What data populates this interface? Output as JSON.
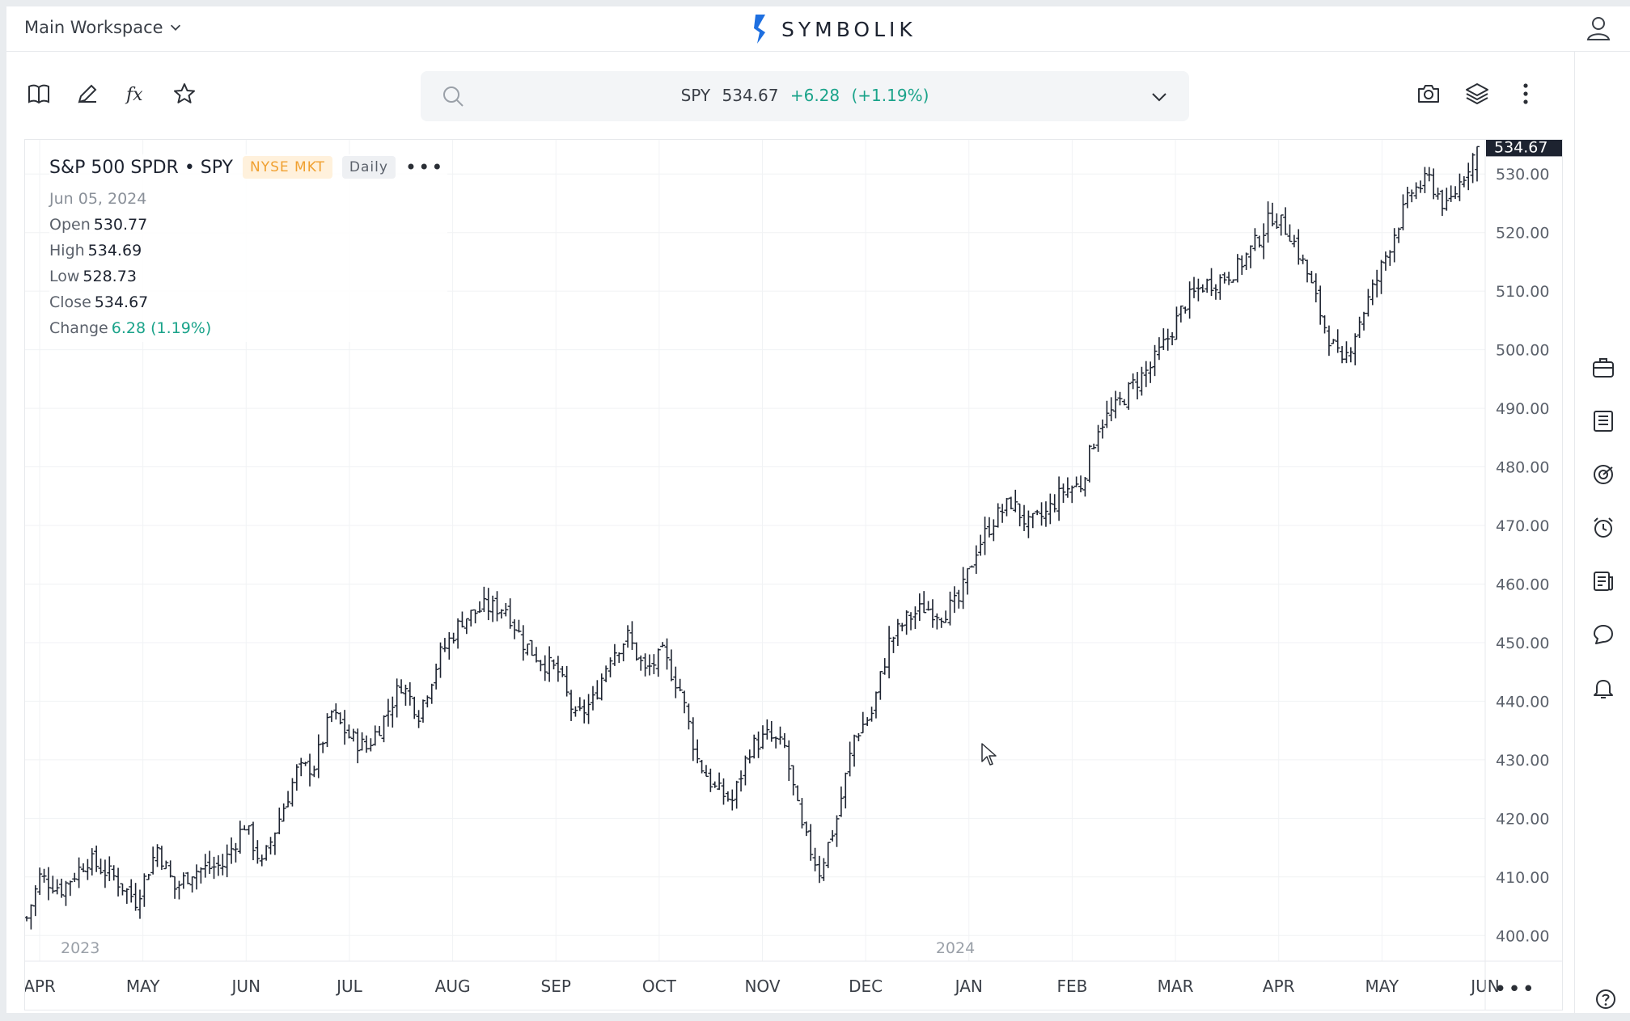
{
  "topbar": {
    "workspace_label": "Main Workspace",
    "brand_name": "SYMBOLIK",
    "brand_color": "#1e6fe0"
  },
  "toolbar": {
    "icons": [
      "book-icon",
      "pencil-icon",
      "function-icon",
      "star-icon"
    ],
    "right_icons": [
      "camera-icon",
      "layers-icon",
      "more-vertical-icon"
    ]
  },
  "quote": {
    "symbol": "SPY",
    "price": "534.67",
    "change": "+6.28",
    "change_pct": "(+1.19%)"
  },
  "legend": {
    "name": "S&P 500 SPDR • SPY",
    "exchange": "NYSE MKT",
    "interval": "Daily",
    "date": "Jun 05, 2024",
    "open_label": "Open",
    "open": "530.77",
    "high_label": "High",
    "high": "534.69",
    "low_label": "Low",
    "low": "528.73",
    "close_label": "Close",
    "close": "534.67",
    "change_label": "Change",
    "change": "6.28 (1.19%)"
  },
  "rail_icons": [
    "briefcase-icon",
    "list-icon",
    "chart-target-icon",
    "alarm-clock-icon",
    "news-icon",
    "chat-icon",
    "bell-icon"
  ],
  "chart_data": {
    "type": "ohlc",
    "title": "S&P 500 SPDR • SPY",
    "ylim": [
      397,
      535
    ],
    "yticks": [
      400,
      410,
      420,
      430,
      440,
      450,
      460,
      470,
      480,
      490,
      500,
      510,
      520,
      530
    ],
    "ytick_labels": [
      "400.00",
      "410.00",
      "420.00",
      "430.00",
      "440.00",
      "450.00",
      "460.00",
      "470.00",
      "480.00",
      "490.00",
      "500.00",
      "510.00",
      "520.00",
      "530.00"
    ],
    "last_price_label": "534.67",
    "x_labels": [
      "APR",
      "MAY",
      "JUN",
      "JUL",
      "AUG",
      "SEP",
      "OCT",
      "NOV",
      "DEC",
      "JAN",
      "FEB",
      "MAR",
      "APR",
      "MAY",
      "JUN"
    ],
    "year_labels": [
      "2023",
      "2024"
    ],
    "close_series": [
      {
        "x": 0,
        "y": 403
      },
      {
        "x": 3,
        "y": 410
      },
      {
        "x": 8,
        "y": 408
      },
      {
        "x": 14,
        "y": 413
      },
      {
        "x": 20,
        "y": 410
      },
      {
        "x": 25,
        "y": 406
      },
      {
        "x": 30,
        "y": 415
      },
      {
        "x": 34,
        "y": 408
      },
      {
        "x": 38,
        "y": 411
      },
      {
        "x": 45,
        "y": 412
      },
      {
        "x": 50,
        "y": 419
      },
      {
        "x": 54,
        "y": 412
      },
      {
        "x": 58,
        "y": 420
      },
      {
        "x": 62,
        "y": 428
      },
      {
        "x": 66,
        "y": 429
      },
      {
        "x": 70,
        "y": 438
      },
      {
        "x": 74,
        "y": 434
      },
      {
        "x": 78,
        "y": 432
      },
      {
        "x": 82,
        "y": 437
      },
      {
        "x": 86,
        "y": 443
      },
      {
        "x": 90,
        "y": 438
      },
      {
        "x": 95,
        "y": 448
      },
      {
        "x": 100,
        "y": 454
      },
      {
        "x": 105,
        "y": 456
      },
      {
        "x": 110,
        "y": 456
      },
      {
        "x": 114,
        "y": 450
      },
      {
        "x": 118,
        "y": 447
      },
      {
        "x": 122,
        "y": 445
      },
      {
        "x": 126,
        "y": 437
      },
      {
        "x": 130,
        "y": 440
      },
      {
        "x": 134,
        "y": 448
      },
      {
        "x": 138,
        "y": 451
      },
      {
        "x": 142,
        "y": 445
      },
      {
        "x": 146,
        "y": 448
      },
      {
        "x": 150,
        "y": 442
      },
      {
        "x": 154,
        "y": 430
      },
      {
        "x": 158,
        "y": 425
      },
      {
        "x": 162,
        "y": 423
      },
      {
        "x": 166,
        "y": 432
      },
      {
        "x": 170,
        "y": 434
      },
      {
        "x": 174,
        "y": 432
      },
      {
        "x": 178,
        "y": 418
      },
      {
        "x": 182,
        "y": 411
      },
      {
        "x": 186,
        "y": 420
      },
      {
        "x": 190,
        "y": 434
      },
      {
        "x": 194,
        "y": 438
      },
      {
        "x": 198,
        "y": 450
      },
      {
        "x": 202,
        "y": 454
      },
      {
        "x": 206,
        "y": 456
      },
      {
        "x": 210,
        "y": 455
      },
      {
        "x": 214,
        "y": 457
      },
      {
        "x": 218,
        "y": 466
      },
      {
        "x": 222,
        "y": 471
      },
      {
        "x": 226,
        "y": 474
      },
      {
        "x": 230,
        "y": 470
      },
      {
        "x": 234,
        "y": 472
      },
      {
        "x": 238,
        "y": 476
      },
      {
        "x": 242,
        "y": 477
      },
      {
        "x": 246,
        "y": 487
      },
      {
        "x": 250,
        "y": 490
      },
      {
        "x": 254,
        "y": 494
      },
      {
        "x": 258,
        "y": 497
      },
      {
        "x": 262,
        "y": 502
      },
      {
        "x": 266,
        "y": 508
      },
      {
        "x": 270,
        "y": 511
      },
      {
        "x": 274,
        "y": 512
      },
      {
        "x": 278,
        "y": 514
      },
      {
        "x": 282,
        "y": 518
      },
      {
        "x": 286,
        "y": 523
      },
      {
        "x": 290,
        "y": 520
      },
      {
        "x": 294,
        "y": 513
      },
      {
        "x": 298,
        "y": 504
      },
      {
        "x": 302,
        "y": 497
      },
      {
        "x": 306,
        "y": 505
      },
      {
        "x": 310,
        "y": 512
      },
      {
        "x": 314,
        "y": 520
      },
      {
        "x": 318,
        "y": 527
      },
      {
        "x": 322,
        "y": 529
      },
      {
        "x": 326,
        "y": 524
      },
      {
        "x": 330,
        "y": 530
      },
      {
        "x": 333,
        "y": 534.67
      }
    ]
  }
}
